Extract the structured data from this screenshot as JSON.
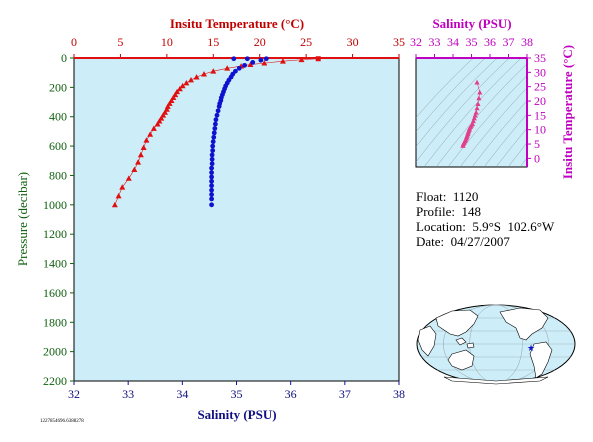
{
  "info": {
    "float_label": "Float:",
    "float": "1120",
    "profile_label": "Profile:",
    "profile": "148",
    "location_label": "Location:",
    "location": "5.9°S  102.6°W",
    "date_label": "Date:",
    "date": "04/27/2007"
  },
  "file_id": "1227854696.6388278",
  "colors": {
    "temperature": "#e01010",
    "salinity": "#1010d0",
    "inset_axis": "#c000c0",
    "inset_points": "#e0408a",
    "plot_bg": "#cdeef8"
  },
  "chart_data": [
    {
      "type": "scatter",
      "title": "",
      "x_top_label": "Insitu Temperature (°C)",
      "x_bottom_label": "Salinity (PSU)",
      "ylabel": "Pressure (decibar)",
      "temperature_lim": [
        0,
        35
      ],
      "temperature_ticks": [
        0,
        5,
        10,
        15,
        20,
        25,
        30,
        35
      ],
      "salinity_lim": [
        32,
        38
      ],
      "salinity_ticks": [
        32,
        33,
        34,
        35,
        36,
        37,
        38
      ],
      "pressure_lim": [
        0,
        2200
      ],
      "pressure_ticks": [
        0,
        200,
        400,
        600,
        800,
        1000,
        1200,
        1400,
        1600,
        1800,
        2000,
        2200
      ],
      "y_inverted": true,
      "series": [
        {
          "variable": "temperature",
          "marker": "triangle",
          "points": [
            [
              26.3,
              5
            ],
            [
              24.5,
              12
            ],
            [
              22.5,
              22
            ],
            [
              20.5,
              35
            ],
            [
              19.0,
              45
            ],
            [
              18.0,
              55
            ],
            [
              16.5,
              70
            ],
            [
              15.0,
              90
            ],
            [
              14.0,
              110
            ],
            [
              13.2,
              130
            ],
            [
              12.6,
              150
            ],
            [
              12.1,
              170
            ],
            [
              11.7,
              190
            ],
            [
              11.4,
              210
            ],
            [
              11.1,
              230
            ],
            [
              10.9,
              250
            ],
            [
              10.7,
              270
            ],
            [
              10.5,
              290
            ],
            [
              10.3,
              310
            ],
            [
              10.1,
              330
            ],
            [
              10.0,
              350
            ],
            [
              9.8,
              370
            ],
            [
              9.6,
              390
            ],
            [
              9.4,
              410
            ],
            [
              9.2,
              430
            ],
            [
              9.0,
              450
            ],
            [
              8.6,
              480
            ],
            [
              8.2,
              520
            ],
            [
              7.8,
              560
            ],
            [
              7.5,
              610
            ],
            [
              7.2,
              660
            ],
            [
              6.9,
              710
            ],
            [
              6.5,
              760
            ],
            [
              5.9,
              820
            ],
            [
              5.2,
              880
            ],
            [
              4.8,
              940
            ],
            [
              4.4,
              1000
            ]
          ]
        },
        {
          "variable": "salinity",
          "marker": "circle",
          "points": [
            [
              34.95,
              5
            ],
            [
              35.2,
              5
            ],
            [
              35.55,
              5
            ],
            [
              35.45,
              15
            ],
            [
              35.3,
              30
            ],
            [
              35.15,
              50
            ],
            [
              35.05,
              70
            ],
            [
              34.98,
              90
            ],
            [
              34.93,
              110
            ],
            [
              34.9,
              130
            ],
            [
              34.86,
              150
            ],
            [
              34.83,
              170
            ],
            [
              34.8,
              190
            ],
            [
              34.78,
              210
            ],
            [
              34.76,
              230
            ],
            [
              34.74,
              250
            ],
            [
              34.72,
              270
            ],
            [
              34.71,
              290
            ],
            [
              34.69,
              310
            ],
            [
              34.68,
              330
            ],
            [
              34.66,
              360
            ],
            [
              34.64,
              390
            ],
            [
              34.62,
              420
            ],
            [
              34.61,
              450
            ],
            [
              34.6,
              480
            ],
            [
              34.59,
              510
            ],
            [
              34.58,
              540
            ],
            [
              34.57,
              570
            ],
            [
              34.56,
              600
            ],
            [
              34.56,
              630
            ],
            [
              34.55,
              660
            ],
            [
              34.55,
              690
            ],
            [
              34.55,
              720
            ],
            [
              34.54,
              750
            ],
            [
              34.54,
              780
            ],
            [
              34.54,
              810
            ],
            [
              34.54,
              840
            ],
            [
              34.54,
              870
            ],
            [
              34.54,
              900
            ],
            [
              34.54,
              930
            ],
            [
              34.54,
              960
            ],
            [
              34.54,
              1000
            ]
          ]
        }
      ]
    },
    {
      "type": "scatter",
      "title": "",
      "xlabel": "Salinity (PSU)",
      "ylabel": "Insitu Temperature (°C)",
      "xlim": [
        32,
        38
      ],
      "ylim": [
        -3,
        35
      ],
      "x_ticks": [
        32,
        33,
        34,
        35,
        36,
        37,
        38
      ],
      "y_ticks": [
        0,
        5,
        10,
        15,
        20,
        25,
        30,
        35
      ],
      "density_contours": true,
      "points": [
        [
          35.3,
          26.5
        ],
        [
          35.45,
          23
        ],
        [
          35.4,
          21
        ],
        [
          35.35,
          19
        ],
        [
          35.3,
          17.5
        ],
        [
          35.25,
          16
        ],
        [
          35.2,
          15
        ],
        [
          35.15,
          14
        ],
        [
          35.1,
          13
        ],
        [
          35.05,
          12
        ],
        [
          35.0,
          11.5
        ],
        [
          34.95,
          11
        ],
        [
          34.9,
          10.5
        ],
        [
          34.88,
          10
        ],
        [
          34.85,
          9.5
        ],
        [
          34.82,
          9
        ],
        [
          34.8,
          8.5
        ],
        [
          34.77,
          8
        ],
        [
          34.74,
          7.5
        ],
        [
          34.72,
          7
        ],
        [
          34.68,
          6.5
        ],
        [
          34.65,
          6
        ],
        [
          34.6,
          5.5
        ],
        [
          34.56,
          5
        ],
        [
          34.54,
          4.4
        ]
      ]
    }
  ],
  "map": {
    "marker": "★",
    "marker_lat": -5.9,
    "marker_lon": -102.6
  }
}
